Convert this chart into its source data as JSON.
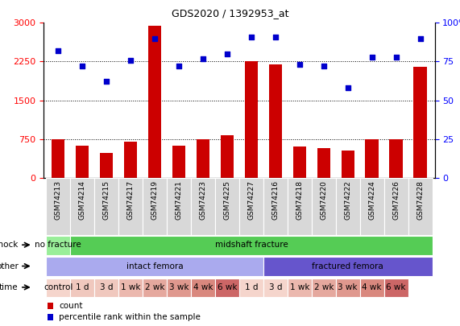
{
  "title": "GDS2020 / 1392953_at",
  "samples": [
    "GSM74213",
    "GSM74214",
    "GSM74215",
    "GSM74217",
    "GSM74219",
    "GSM74221",
    "GSM74223",
    "GSM74225",
    "GSM74227",
    "GSM74216",
    "GSM74218",
    "GSM74220",
    "GSM74222",
    "GSM74224",
    "GSM74226",
    "GSM74228"
  ],
  "counts": [
    750,
    620,
    480,
    700,
    2950,
    620,
    750,
    820,
    2250,
    2200,
    600,
    580,
    520,
    750,
    750,
    2150
  ],
  "percentiles": [
    82,
    72,
    62,
    76,
    90,
    72,
    77,
    80,
    91,
    91,
    73,
    72,
    58,
    78,
    78,
    90
  ],
  "ylim_left": [
    0,
    3000
  ],
  "ylim_right": [
    0,
    100
  ],
  "yticks_left": [
    0,
    750,
    1500,
    2250,
    3000
  ],
  "yticks_right": [
    0,
    25,
    50,
    75,
    100
  ],
  "bar_color": "#cc0000",
  "dot_color": "#0000cc",
  "chart_bg": "#ffffff",
  "shock_row": {
    "label": "shock",
    "segments": [
      {
        "text": "no fracture",
        "start": 0,
        "end": 1,
        "color": "#99ee99"
      },
      {
        "text": "midshaft fracture",
        "start": 1,
        "end": 16,
        "color": "#55cc55"
      }
    ]
  },
  "other_row": {
    "label": "other",
    "segments": [
      {
        "text": "intact femora",
        "start": 0,
        "end": 9,
        "color": "#aaaaee"
      },
      {
        "text": "fractured femora",
        "start": 9,
        "end": 16,
        "color": "#6655cc"
      }
    ]
  },
  "time_row": {
    "label": "time",
    "cells": [
      {
        "text": "control",
        "start": 0,
        "end": 1,
        "color": "#f5d5cc"
      },
      {
        "text": "1 d",
        "start": 1,
        "end": 2,
        "color": "#f0c8be"
      },
      {
        "text": "3 d",
        "start": 2,
        "end": 3,
        "color": "#f0c8be"
      },
      {
        "text": "1 wk",
        "start": 3,
        "end": 4,
        "color": "#ebb8ae"
      },
      {
        "text": "2 wk",
        "start": 4,
        "end": 5,
        "color": "#e5a89e"
      },
      {
        "text": "3 wk",
        "start": 5,
        "end": 6,
        "color": "#df988e"
      },
      {
        "text": "4 wk",
        "start": 6,
        "end": 7,
        "color": "#d9887e"
      },
      {
        "text": "6 wk",
        "start": 7,
        "end": 8,
        "color": "#cc6666"
      },
      {
        "text": "1 d",
        "start": 8,
        "end": 9,
        "color": "#f5d5cc"
      },
      {
        "text": "3 d",
        "start": 9,
        "end": 10,
        "color": "#f5d5cc"
      },
      {
        "text": "1 wk",
        "start": 10,
        "end": 11,
        "color": "#ebb8ae"
      },
      {
        "text": "2 wk",
        "start": 11,
        "end": 12,
        "color": "#e5a89e"
      },
      {
        "text": "3 wk",
        "start": 12,
        "end": 13,
        "color": "#df988e"
      },
      {
        "text": "4 wk",
        "start": 13,
        "end": 14,
        "color": "#d9887e"
      },
      {
        "text": "6 wk",
        "start": 14,
        "end": 15,
        "color": "#cc6666"
      },
      {
        "text": "",
        "start": 15,
        "end": 16,
        "color": "#cc6666"
      }
    ]
  }
}
